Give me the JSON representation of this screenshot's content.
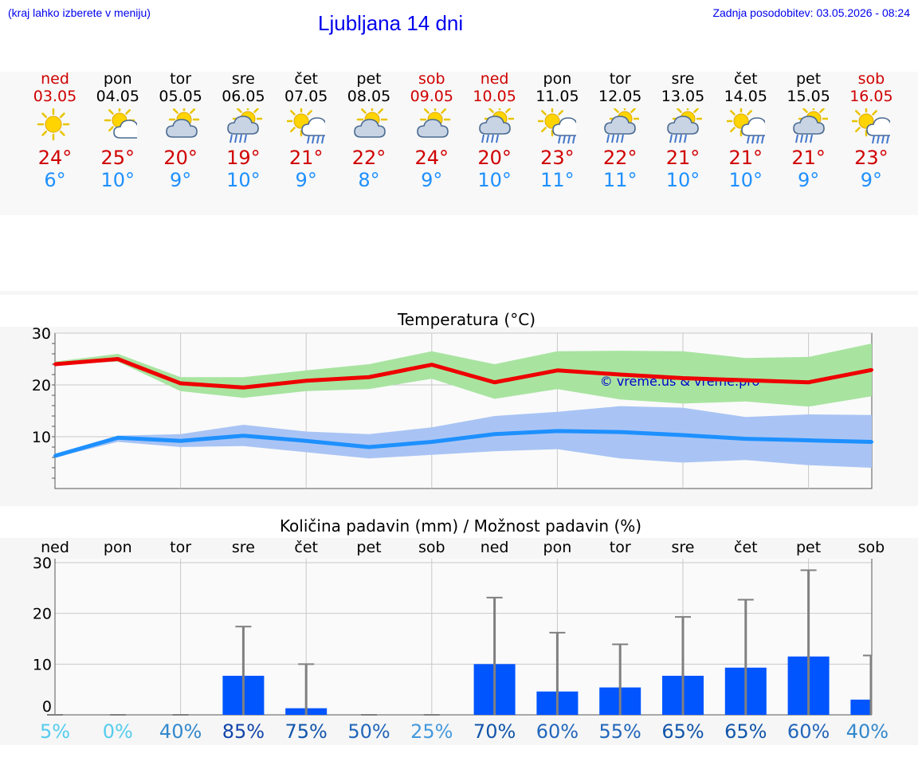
{
  "header": {
    "hint": "(kraj lahko izberete v meniju)",
    "title": "Ljubljana 14 dni",
    "updated": "Zadnja posodobitev: 03.05.2026 - 08:24"
  },
  "days": [
    {
      "name": "ned",
      "date": "03.05",
      "weekend": true,
      "icon": "sunny-icon",
      "tmax": "24°",
      "tmin": "6°"
    },
    {
      "name": "pon",
      "date": "04.05",
      "weekend": false,
      "icon": "sun-cloud-icon",
      "tmax": "25°",
      "tmin": "10°"
    },
    {
      "name": "tor",
      "date": "05.05",
      "weekend": false,
      "icon": "partly-cloudy-icon",
      "tmax": "20°",
      "tmin": "9°"
    },
    {
      "name": "sre",
      "date": "06.05",
      "weekend": false,
      "icon": "rain-shower-icon",
      "tmax": "19°",
      "tmin": "10°"
    },
    {
      "name": "čet",
      "date": "07.05",
      "weekend": false,
      "icon": "sun-rain-icon",
      "tmax": "21°",
      "tmin": "9°"
    },
    {
      "name": "pet",
      "date": "08.05",
      "weekend": false,
      "icon": "partly-cloudy-icon",
      "tmax": "22°",
      "tmin": "8°"
    },
    {
      "name": "sob",
      "date": "09.05",
      "weekend": true,
      "icon": "partly-cloudy-icon",
      "tmax": "24°",
      "tmin": "9°"
    },
    {
      "name": "ned",
      "date": "10.05",
      "weekend": true,
      "icon": "rain-shower-icon",
      "tmax": "20°",
      "tmin": "10°"
    },
    {
      "name": "pon",
      "date": "11.05",
      "weekend": false,
      "icon": "sun-rain-icon",
      "tmax": "23°",
      "tmin": "11°"
    },
    {
      "name": "tor",
      "date": "12.05",
      "weekend": false,
      "icon": "rain-shower-icon",
      "tmax": "22°",
      "tmin": "11°"
    },
    {
      "name": "sre",
      "date": "13.05",
      "weekend": false,
      "icon": "rain-shower-icon",
      "tmax": "21°",
      "tmin": "10°"
    },
    {
      "name": "čet",
      "date": "14.05",
      "weekend": false,
      "icon": "sun-rain-icon",
      "tmax": "21°",
      "tmin": "10°"
    },
    {
      "name": "pet",
      "date": "15.05",
      "weekend": false,
      "icon": "rain-shower-icon",
      "tmax": "21°",
      "tmin": "9°"
    },
    {
      "name": "sob",
      "date": "16.05",
      "weekend": true,
      "icon": "sun-rain-icon",
      "tmax": "23°",
      "tmin": "9°"
    }
  ],
  "colors": {
    "max": "#ee0000",
    "max_band": "#a8e4a0",
    "min": "#1e90ff",
    "min_band": "#a9c4f4",
    "bar": "#0055ff",
    "whisker": "#808080"
  },
  "chart_data": [
    {
      "type": "line",
      "title": "Temperatura (°C)",
      "watermark": "© vreme.us & vreme.pro",
      "ylim": [
        0,
        30
      ],
      "yticks": [
        10,
        20,
        30
      ],
      "grid": true,
      "series": [
        {
          "key": "max",
          "values": [
            24.0,
            25.0,
            20.3,
            19.5,
            20.8,
            21.5,
            23.9,
            20.5,
            22.8,
            22.0,
            21.3,
            20.9,
            20.5,
            22.9
          ],
          "band_low": [
            24.0,
            24.5,
            18.8,
            17.5,
            18.8,
            19.2,
            21.2,
            17.3,
            19.2,
            17.2,
            16.4,
            16.8,
            15.8,
            17.8
          ],
          "band_high": [
            24.5,
            26.0,
            21.5,
            21.5,
            22.8,
            24.0,
            26.5,
            24.0,
            26.5,
            26.6,
            26.5,
            25.2,
            25.4,
            28.0
          ]
        },
        {
          "key": "min",
          "values": [
            6.3,
            9.8,
            9.2,
            10.2,
            9.2,
            8.0,
            9.0,
            10.5,
            11.1,
            10.9,
            10.3,
            9.6,
            9.3,
            9.0
          ],
          "band_low": [
            6.0,
            9.0,
            8.0,
            8.2,
            7.0,
            5.8,
            6.5,
            7.2,
            7.6,
            5.8,
            5.0,
            5.5,
            4.5,
            4.0
          ],
          "band_high": [
            6.5,
            10.2,
            10.5,
            12.3,
            11.0,
            10.5,
            11.8,
            14.0,
            14.8,
            15.9,
            15.6,
            13.8,
            14.3,
            14.2
          ]
        }
      ]
    },
    {
      "type": "bar",
      "title": "Količina padavin (mm) / Možnost padavin (%)",
      "categories": [
        "ned",
        "pon",
        "tor",
        "sre",
        "čet",
        "pet",
        "sob",
        "ned",
        "pon",
        "tor",
        "sre",
        "čet",
        "pet",
        "sob"
      ],
      "ylim": [
        0,
        30
      ],
      "yticks": [
        0,
        10,
        20,
        30
      ],
      "values": [
        0,
        0,
        0,
        7.7,
        1.3,
        0,
        0,
        10.0,
        4.6,
        5.4,
        7.7,
        9.3,
        11.5,
        3.0
      ],
      "whisker_high": [
        0,
        0,
        0,
        17.4,
        10.0,
        0,
        0,
        23.1,
        16.2,
        13.9,
        19.3,
        22.7,
        28.5,
        11.7
      ],
      "probability": [
        "5%",
        "0%",
        "40%",
        "85%",
        "75%",
        "50%",
        "25%",
        "70%",
        "60%",
        "55%",
        "65%",
        "65%",
        "60%",
        "40%"
      ],
      "probability_colors": [
        "#55ccee",
        "#55ccee",
        "#3388cc",
        "#1144aa",
        "#1155aa",
        "#2266bb",
        "#4499dd",
        "#1155aa",
        "#2266bb",
        "#2266bb",
        "#1155aa",
        "#1155aa",
        "#2266bb",
        "#3388cc"
      ]
    }
  ]
}
